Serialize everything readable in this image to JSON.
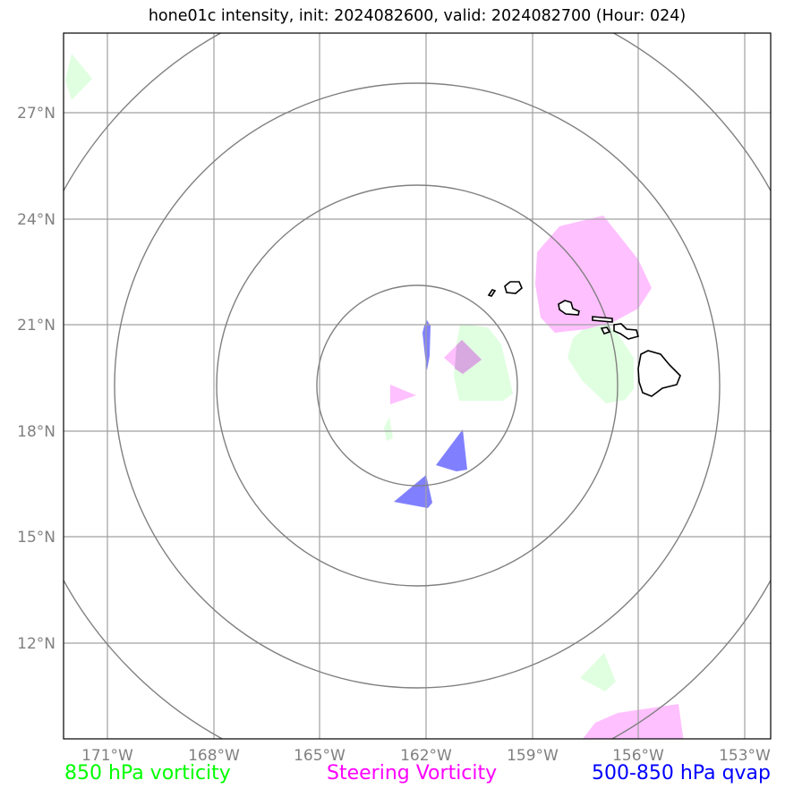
{
  "title": "hone01c intensity, init: 2024082600, valid: 2024082700 (Hour: 024)",
  "legend": [
    {
      "label": "850 hPa vorticity",
      "color": "#00ff00"
    },
    {
      "label": "Steering Vorticity",
      "color": "#ff00ff"
    },
    {
      "label": "500-850 hPa qvap",
      "color": "#0000ff"
    }
  ],
  "colors": {
    "vort850_fill": "#e0ffe0",
    "steering_fill": "#ffc0ff",
    "qvap_fill": "#8080ff",
    "grid": "#a0a0a0",
    "rings": "#808080",
    "coast": "#000000",
    "tick_label": "#808080"
  },
  "chart_data": {
    "type": "map",
    "projection": "orthographic-like, centered on storm",
    "center": {
      "lon": -162,
      "lat": 19.8
    },
    "lon_ticks": [
      "171°W",
      "168°W",
      "165°W",
      "162°W",
      "159°W",
      "156°W",
      "153°W"
    ],
    "lon_values": [
      -171,
      -168,
      -165,
      -162,
      -159,
      -156,
      -153
    ],
    "lat_ticks": [
      "27°N",
      "24°N",
      "21°N",
      "18°N",
      "15°N",
      "12°N"
    ],
    "lat_values": [
      27,
      24,
      21,
      18,
      15,
      12
    ],
    "grid": true,
    "range_rings": 4,
    "features": [
      "Hawaiian Islands coastline"
    ]
  }
}
